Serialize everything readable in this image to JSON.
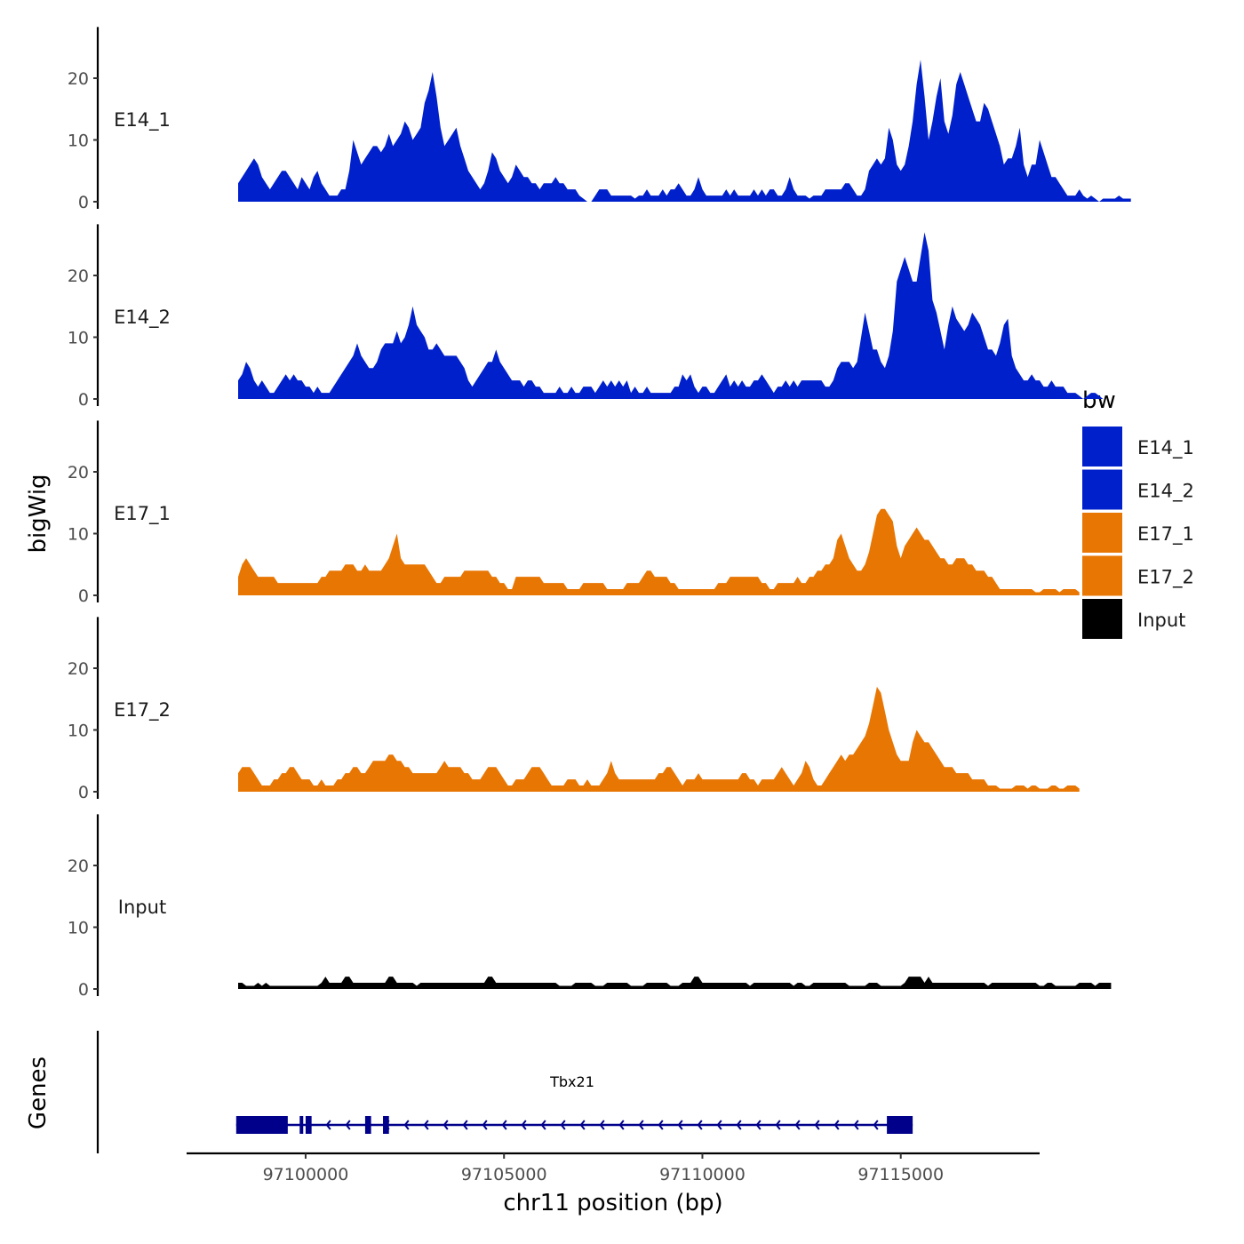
{
  "chart_data": {
    "type": "area",
    "title": "",
    "ylabel": "bigWig",
    "xlabel": "chr11 position (bp)",
    "genes_label": "Genes",
    "xlim": [
      97097000,
      97118500
    ],
    "x_ticks": [
      97100000,
      97105000,
      97110000,
      97115000
    ],
    "x_tick_labels": [
      "97100000",
      "97105000",
      "97110000",
      "97115000"
    ],
    "ylim": [
      0,
      28
    ],
    "y_ticks": [
      0,
      10,
      20
    ],
    "y_tick_labels": [
      "0",
      "10",
      "20"
    ],
    "x_start": 97098300,
    "x_step": 100,
    "series": [
      {
        "name": "E14_1",
        "color": "#0020CC",
        "values": [
          3,
          4,
          5,
          6,
          7,
          6,
          4,
          3,
          2,
          3,
          4,
          5,
          5,
          4,
          3,
          2,
          4,
          3,
          2,
          4,
          5,
          3,
          2,
          1,
          1,
          1,
          2,
          2,
          5,
          10,
          8,
          6,
          7,
          8,
          9,
          9,
          8,
          9,
          11,
          9,
          10,
          11,
          13,
          12,
          10,
          11,
          12,
          16,
          18,
          21,
          17,
          12,
          9,
          10,
          11,
          12,
          9,
          7,
          5,
          4,
          3,
          2,
          3,
          5,
          8,
          7,
          5,
          4,
          3,
          4,
          6,
          5,
          4,
          4,
          3,
          3,
          2,
          3,
          3,
          3,
          4,
          3,
          3,
          2,
          2,
          2,
          1,
          0.5,
          0,
          0,
          1,
          2,
          2,
          2,
          1,
          1,
          1,
          1,
          1,
          1,
          0.5,
          1,
          1,
          2,
          1,
          1,
          1,
          2,
          1,
          2,
          2,
          3,
          2,
          1,
          1,
          2,
          4,
          2,
          1,
          1,
          1,
          1,
          1,
          2,
          1,
          2,
          1,
          1,
          1,
          1,
          2,
          1,
          2,
          1,
          2,
          2,
          1,
          1,
          2,
          4,
          2,
          1,
          1,
          1,
          0.5,
          1,
          1,
          1,
          2,
          2,
          2,
          2,
          2,
          3,
          3,
          2,
          1,
          1,
          2,
          5,
          6,
          7,
          6,
          7,
          12,
          10,
          6,
          5,
          6,
          9,
          13,
          19,
          23,
          17,
          10,
          13,
          17,
          20,
          13,
          11,
          14,
          19,
          21,
          19,
          17,
          15,
          13,
          13,
          16,
          15,
          13,
          11,
          9,
          6,
          7,
          7,
          9,
          12,
          6,
          4,
          6,
          6,
          10,
          8,
          6,
          4,
          4,
          3,
          2,
          1,
          1,
          1,
          2,
          1,
          0.5,
          1,
          0.5,
          0,
          0.5,
          0.5,
          0.5,
          0.5,
          1,
          0.5,
          0.5,
          0.5
        ]
      },
      {
        "name": "E14_2",
        "color": "#0020CC",
        "values": [
          3,
          4,
          6,
          5,
          3,
          2,
          3,
          2,
          1,
          1,
          2,
          3,
          4,
          3,
          4,
          3,
          3,
          2,
          2,
          1,
          2,
          1,
          1,
          1,
          2,
          3,
          4,
          5,
          6,
          7,
          9,
          7,
          6,
          5,
          5,
          6,
          8,
          9,
          9,
          9,
          11,
          9,
          10,
          12,
          15,
          12,
          11,
          10,
          8,
          8,
          9,
          8,
          7,
          7,
          7,
          7,
          6,
          5,
          3,
          2,
          3,
          4,
          5,
          6,
          6,
          8,
          6,
          5,
          4,
          3,
          3,
          3,
          2,
          3,
          3,
          2,
          2,
          1,
          1,
          1,
          1,
          2,
          1,
          1,
          2,
          1,
          1,
          2,
          2,
          2,
          1,
          2,
          3,
          2,
          3,
          2,
          3,
          2,
          3,
          1,
          2,
          1,
          1,
          2,
          1,
          1,
          1,
          1,
          1,
          1,
          2,
          2,
          4,
          3,
          4,
          2,
          1,
          2,
          2,
          1,
          1,
          2,
          3,
          4,
          2,
          3,
          2,
          3,
          2,
          2,
          3,
          3,
          4,
          3,
          2,
          1,
          2,
          2,
          3,
          2,
          3,
          2,
          3,
          3,
          3,
          3,
          3,
          3,
          2,
          2,
          3,
          5,
          6,
          6,
          6,
          5,
          6,
          10,
          14,
          11,
          8,
          8,
          6,
          5,
          7,
          11,
          19,
          21,
          23,
          21,
          19,
          19,
          23,
          27,
          24,
          16,
          14,
          11,
          8,
          12,
          15,
          13,
          12,
          11,
          12,
          14,
          13,
          12,
          10,
          8,
          8,
          7,
          9,
          12,
          13,
          7,
          5,
          4,
          3,
          3,
          4,
          3,
          3,
          2,
          2,
          3,
          2,
          2,
          2,
          1,
          1,
          1,
          0.5,
          0,
          0.5,
          1,
          1,
          0.5,
          0
        ]
      },
      {
        "name": "E17_1",
        "color": "#E87603",
        "values": [
          3,
          5,
          6,
          5,
          4,
          3,
          3,
          3,
          3,
          3,
          2,
          2,
          2,
          2,
          2,
          2,
          2,
          2,
          2,
          2,
          2,
          3,
          3,
          4,
          4,
          4,
          4,
          5,
          5,
          5,
          4,
          4,
          5,
          4,
          4,
          4,
          4,
          5,
          6,
          8,
          10,
          6,
          5,
          5,
          5,
          5,
          5,
          5,
          4,
          3,
          2,
          2,
          3,
          3,
          3,
          3,
          3,
          4,
          4,
          4,
          4,
          4,
          4,
          4,
          3,
          3,
          2,
          2,
          1,
          1,
          3,
          3,
          3,
          3,
          3,
          3,
          3,
          2,
          2,
          2,
          2,
          2,
          2,
          1,
          1,
          1,
          1,
          2,
          2,
          2,
          2,
          2,
          2,
          1,
          1,
          1,
          1,
          1,
          2,
          2,
          2,
          2,
          3,
          4,
          4,
          3,
          3,
          3,
          3,
          2,
          2,
          1,
          1,
          1,
          1,
          1,
          1,
          1,
          1,
          1,
          1,
          2,
          2,
          2,
          3,
          3,
          3,
          3,
          3,
          3,
          3,
          3,
          2,
          2,
          1,
          1,
          2,
          2,
          2,
          2,
          2,
          3,
          2,
          2,
          3,
          3,
          4,
          4,
          5,
          5,
          6,
          9,
          10,
          8,
          6,
          5,
          4,
          4,
          5,
          7,
          10,
          13,
          14,
          14,
          13,
          12,
          8,
          6,
          8,
          9,
          10,
          11,
          10,
          9,
          9,
          8,
          7,
          6,
          6,
          5,
          5,
          6,
          6,
          6,
          5,
          5,
          4,
          4,
          4,
          3,
          3,
          2,
          1,
          1,
          1,
          1,
          1,
          1,
          1,
          1,
          1,
          0.5,
          0.5,
          1,
          1,
          1,
          1,
          0.5,
          1,
          1,
          1,
          1,
          0.5
        ]
      },
      {
        "name": "E17_2",
        "color": "#E87603",
        "values": [
          3,
          4,
          4,
          4,
          3,
          2,
          1,
          1,
          1,
          2,
          2,
          3,
          3,
          4,
          4,
          3,
          2,
          2,
          2,
          1,
          1,
          2,
          1,
          1,
          1,
          2,
          2,
          3,
          3,
          4,
          4,
          3,
          3,
          4,
          5,
          5,
          5,
          5,
          6,
          6,
          5,
          5,
          4,
          4,
          3,
          3,
          3,
          3,
          3,
          3,
          3,
          4,
          5,
          4,
          4,
          4,
          4,
          3,
          3,
          2,
          2,
          2,
          3,
          4,
          4,
          4,
          3,
          2,
          1,
          1,
          2,
          2,
          2,
          3,
          4,
          4,
          4,
          3,
          2,
          1,
          1,
          1,
          1,
          2,
          2,
          2,
          1,
          1,
          2,
          1,
          1,
          1,
          2,
          3,
          5,
          3,
          2,
          2,
          2,
          2,
          2,
          2,
          2,
          2,
          2,
          2,
          3,
          3,
          4,
          4,
          3,
          2,
          1,
          2,
          2,
          2,
          3,
          2,
          2,
          2,
          2,
          2,
          2,
          2,
          2,
          2,
          2,
          3,
          3,
          2,
          2,
          1,
          2,
          2,
          2,
          2,
          3,
          4,
          3,
          2,
          1,
          2,
          3,
          5,
          4,
          2,
          1,
          1,
          2,
          3,
          4,
          5,
          6,
          5,
          6,
          6,
          7,
          8,
          9,
          11,
          14,
          17,
          16,
          13,
          10,
          8,
          6,
          5,
          5,
          5,
          8,
          10,
          9,
          8,
          8,
          7,
          6,
          5,
          4,
          4,
          4,
          3,
          3,
          3,
          3,
          2,
          2,
          2,
          2,
          1,
          1,
          1,
          0.5,
          0.5,
          0.5,
          0.5,
          1,
          1,
          1,
          0.5,
          1,
          1,
          0.5,
          0.5,
          0.5,
          1,
          1,
          0.5,
          0.5,
          1,
          1,
          1,
          0.5
        ]
      },
      {
        "name": "Input",
        "color": "#000000",
        "values": [
          1,
          1,
          0.5,
          0.5,
          0.5,
          1,
          0.5,
          1,
          0.5,
          0.5,
          0.5,
          0.5,
          0.5,
          0.5,
          0.5,
          0.5,
          0.5,
          0.5,
          0.5,
          0.5,
          0.5,
          1,
          2,
          1,
          1,
          1,
          1,
          2,
          2,
          1,
          1,
          1,
          1,
          1,
          1,
          1,
          1,
          1,
          2,
          2,
          1,
          1,
          1,
          1,
          1,
          0.5,
          1,
          1,
          1,
          1,
          1,
          1,
          1,
          1,
          1,
          1,
          1,
          1,
          1,
          1,
          1,
          1,
          1,
          2,
          2,
          1,
          1,
          1,
          1,
          1,
          1,
          1,
          1,
          1,
          1,
          1,
          1,
          1,
          1,
          1,
          1,
          0.5,
          0.5,
          0.5,
          0.5,
          1,
          1,
          1,
          1,
          1,
          0.5,
          0.5,
          0.5,
          1,
          1,
          1,
          1,
          1,
          1,
          0.5,
          0.5,
          0.5,
          0.5,
          1,
          1,
          1,
          1,
          1,
          1,
          0.5,
          0.5,
          0.5,
          1,
          1,
          1,
          2,
          2,
          1,
          1,
          1,
          1,
          1,
          1,
          1,
          1,
          1,
          1,
          1,
          1,
          0.5,
          1,
          1,
          1,
          1,
          1,
          1,
          1,
          1,
          1,
          1,
          0.5,
          1,
          1,
          0.5,
          0.5,
          1,
          1,
          1,
          1,
          1,
          1,
          1,
          1,
          1,
          0.5,
          0.5,
          0.5,
          0.5,
          0.5,
          1,
          1,
          1,
          0.5,
          0.5,
          0.5,
          0.5,
          0.5,
          0.5,
          1,
          2,
          2,
          2,
          2,
          1,
          2,
          1,
          1,
          1,
          1,
          1,
          1,
          1,
          1,
          1,
          1,
          1,
          1,
          1,
          1,
          0.5,
          1,
          1,
          1,
          1,
          1,
          1,
          1,
          1,
          1,
          1,
          1,
          1,
          0.5,
          0.5,
          1,
          1,
          0.5,
          0.5,
          0.5,
          0.5,
          0.5,
          0.5,
          1,
          1,
          1,
          1,
          0.5,
          1,
          1,
          1,
          1
        ]
      }
    ],
    "gene": {
      "name": "Tbx21",
      "strand": "-",
      "start": 97098250,
      "end": 97115300,
      "exons": [
        [
          97098250,
          97099550
        ],
        [
          97099850,
          97099900
        ],
        [
          97100000,
          97100150
        ],
        [
          97101500,
          97101650
        ],
        [
          97101950,
          97102100
        ],
        [
          97114650,
          97115300
        ]
      ],
      "color": "#00008B"
    },
    "legend": {
      "title": "bw",
      "position": "right",
      "entries": [
        {
          "label": "E14_1",
          "color": "#0020CC"
        },
        {
          "label": "E14_2",
          "color": "#0020CC"
        },
        {
          "label": "E17_1",
          "color": "#E87603"
        },
        {
          "label": "E17_2",
          "color": "#E87603"
        },
        {
          "label": "Input",
          "color": "#000000"
        }
      ]
    }
  }
}
